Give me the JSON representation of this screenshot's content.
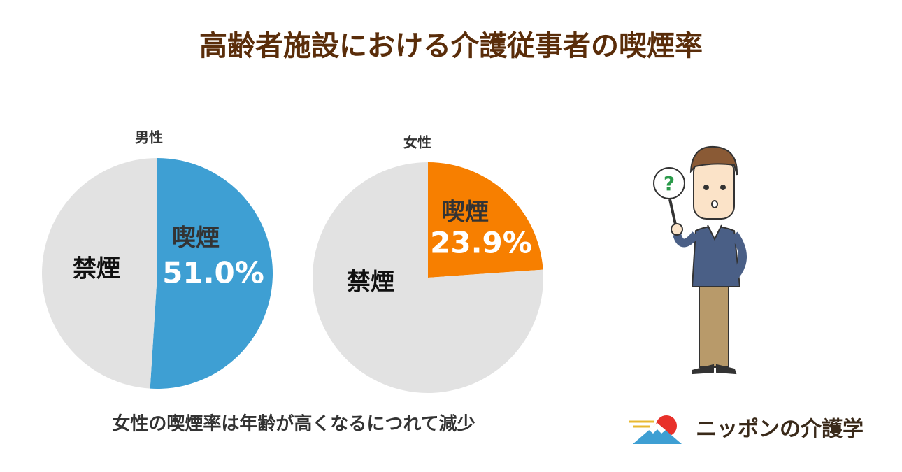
{
  "title": "高齢者施設における介護従事者の喫煙率",
  "note": "女性の喫煙率は年齢が高くなるにつれて減少",
  "logo": "ニッポンの介護学",
  "chart_data": [
    {
      "type": "pie",
      "title": "男性",
      "categories": [
        "喫煙",
        "禁煙"
      ],
      "values": [
        51.0,
        49.0
      ],
      "value_labels": [
        "51.0%",
        null
      ],
      "colors": [
        "#3e9fd3",
        "#e2e2e2"
      ]
    },
    {
      "type": "pie",
      "title": "女性",
      "categories": [
        "喫煙",
        "禁煙"
      ],
      "values": [
        23.9,
        76.1
      ],
      "value_labels": [
        "23.9%",
        null
      ],
      "colors": [
        "#f77f00",
        "#e2e2e2"
      ]
    }
  ]
}
